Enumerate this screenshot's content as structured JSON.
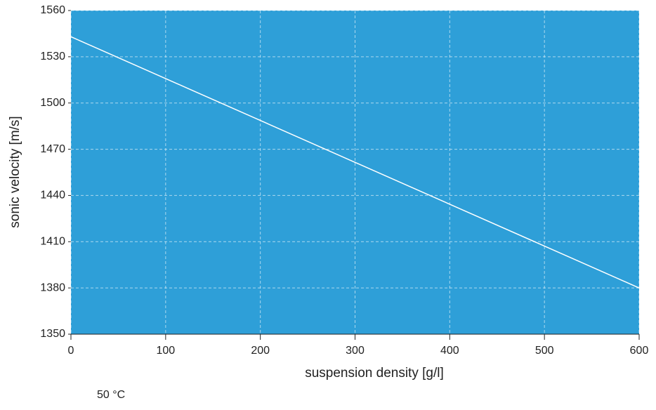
{
  "chart_data": {
    "type": "line",
    "x": [
      0,
      600
    ],
    "values": [
      1543,
      1380
    ],
    "color": "#ffffff",
    "xlabel": "suspension density [g/l]",
    "ylabel": "sonic velocity [m/s]",
    "annotation": "50 °C",
    "xlim": [
      0,
      600
    ],
    "ylim": [
      1350,
      1560
    ],
    "xticks": [
      0,
      100,
      200,
      300,
      400,
      500,
      600
    ],
    "yticks": [
      1350,
      1380,
      1410,
      1440,
      1470,
      1500,
      1530,
      1560
    ],
    "grid": true,
    "background": "#2e9fd8"
  }
}
